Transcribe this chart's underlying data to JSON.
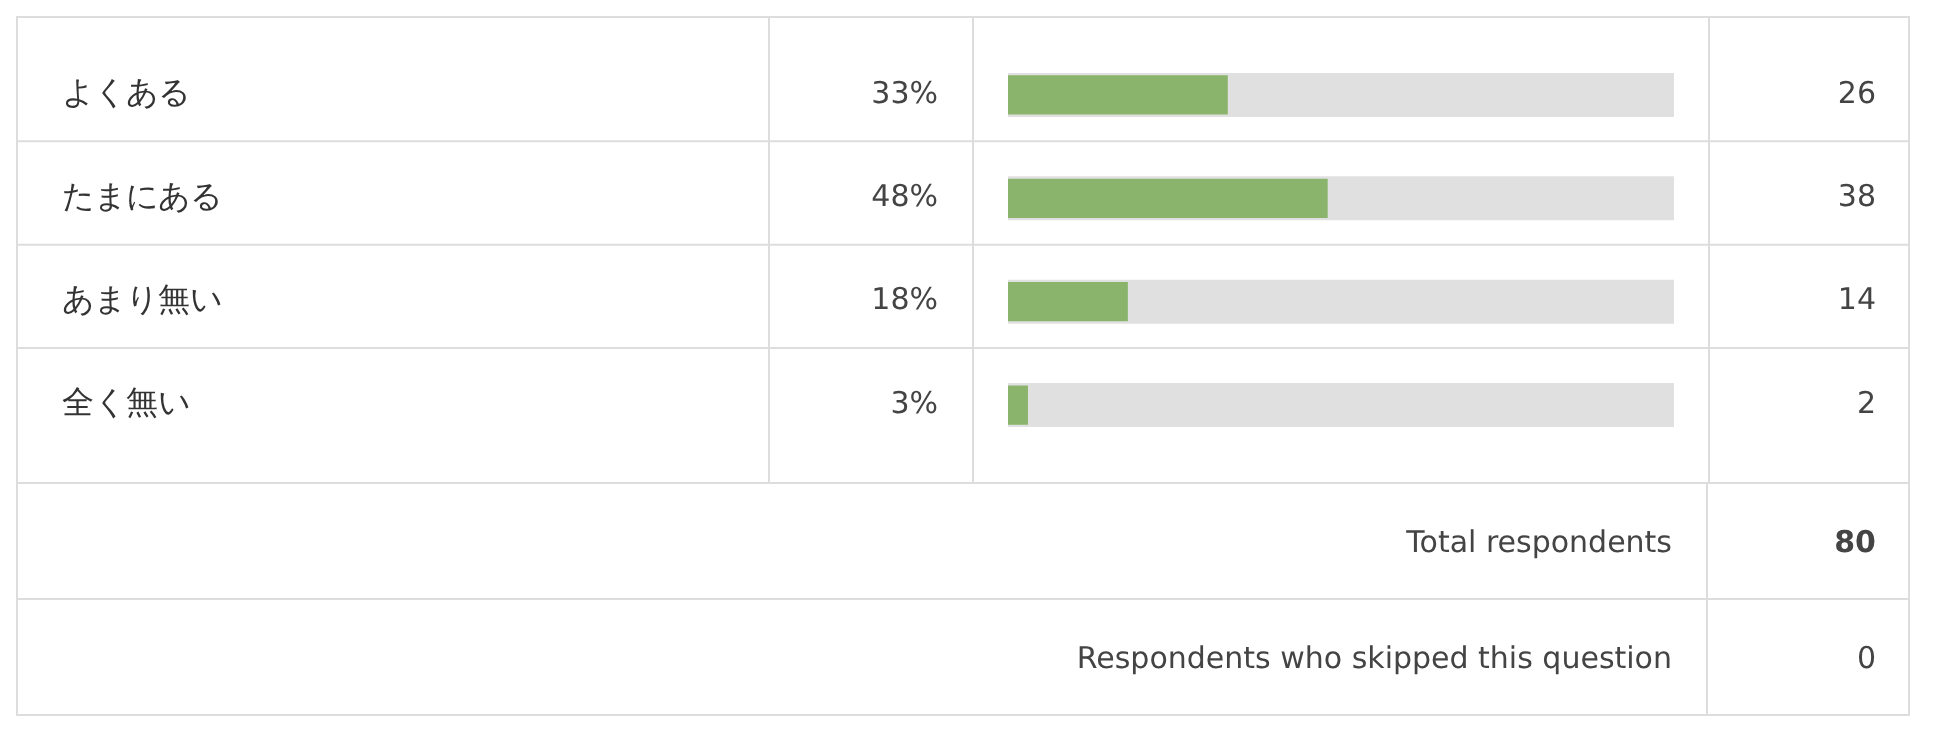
{
  "chart_data": {
    "type": "bar",
    "orientation": "horizontal",
    "categories": [
      "よくある",
      "たまにある",
      "あまり無い",
      "全く無い"
    ],
    "values": [
      33,
      48,
      18,
      3
    ],
    "color": "#8ab46c",
    "value_labels": [
      "33%",
      "48%",
      "18%",
      "3%"
    ],
    "xlim": [
      0,
      100
    ],
    "tick_labels": "y",
    "annotations": [
      "26",
      "38",
      "14",
      "2",
      "Total respondents",
      "80",
      "Respondents who skipped this question",
      "0"
    ]
  }
}
